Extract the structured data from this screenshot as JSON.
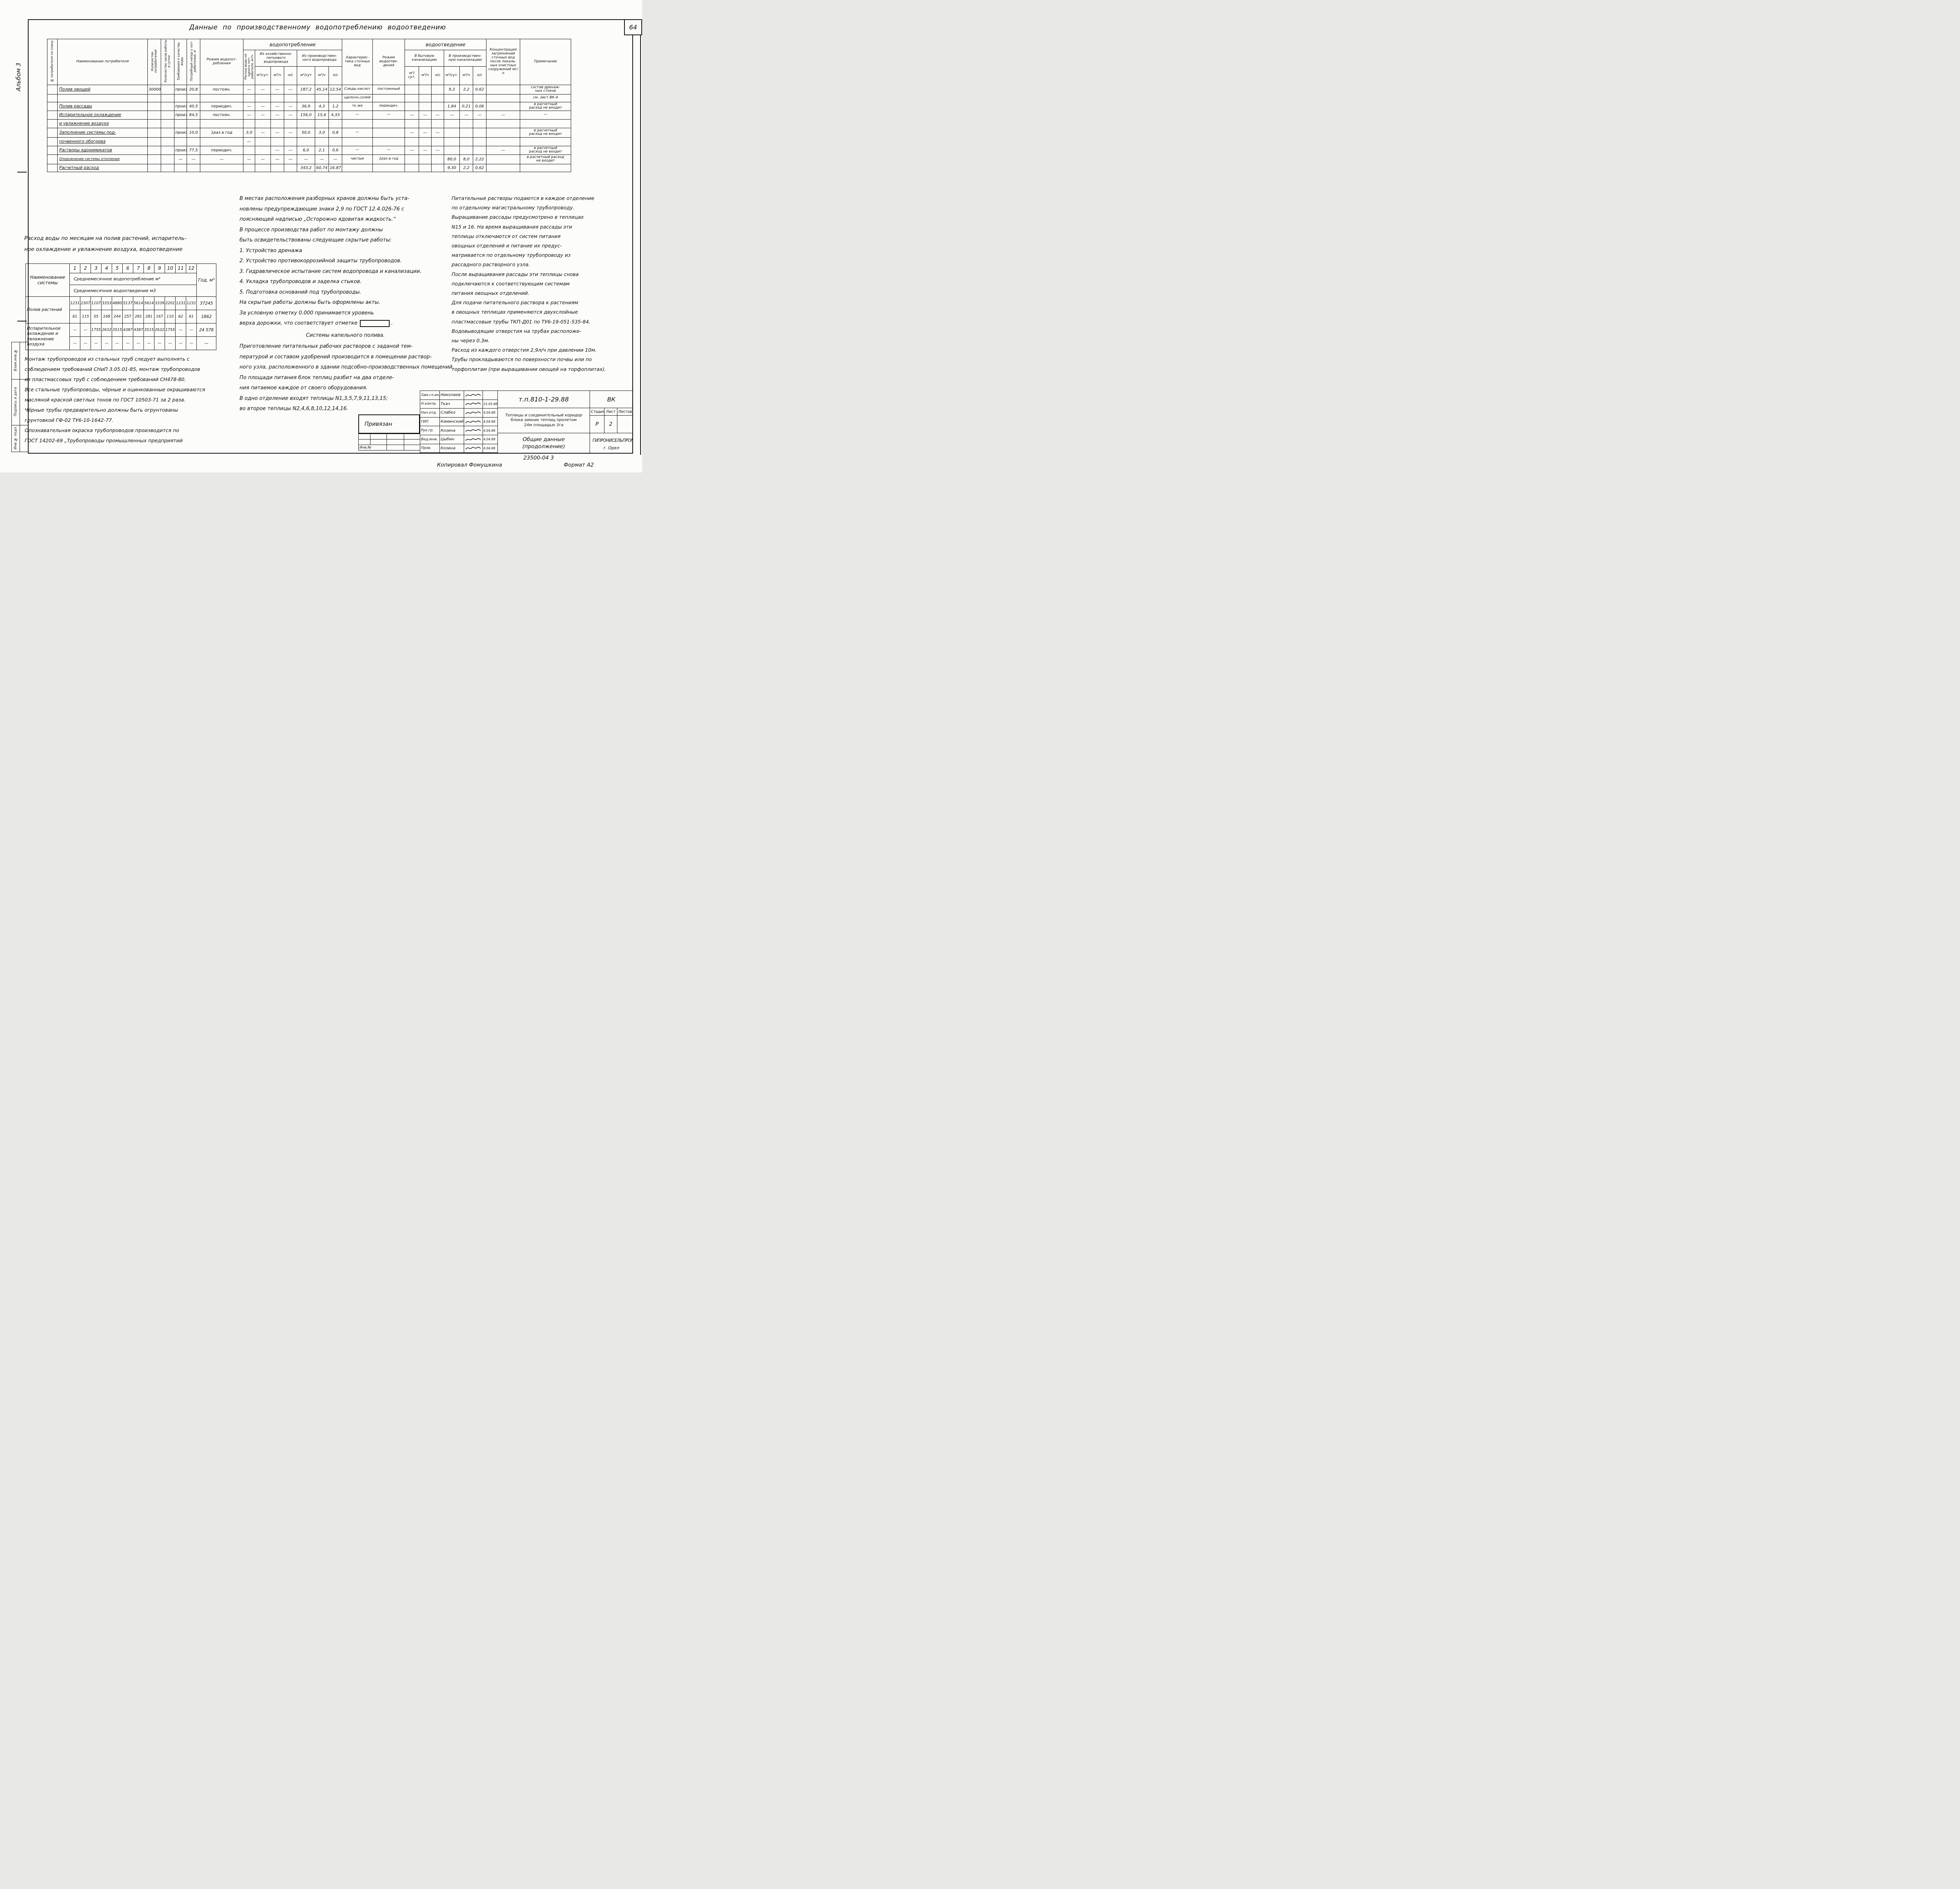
{
  "page": {
    "number": "64",
    "album_label": "Альбом 3",
    "copied": "Копировал Фомушкина",
    "format": "Формат А2"
  },
  "side_labels": [
    "Взам.инв.№",
    "Подпись и дата",
    "Инв.№ подл."
  ],
  "main_table": {
    "title": "Данные по производственному водопотреблению водоотведению",
    "group_consumption": "водопотребление",
    "group_disposal": "водоотведение",
    "headers": {
      "col_no": "№ потребителя по плану",
      "name": "Наименование потребителя",
      "qty": "Количество потребителей",
      "hours": "Количество часов работы в сутки",
      "quality": "Требования к качеству воды",
      "pressure": "Потребный напор у пот-ребителей, м",
      "regime_consumption": "Режим водопот- ребления",
      "per_consumer": "Расход воды на одного пот-ребителя, м³/ч",
      "from_domestic": "Из хозяйственно- питьевого водопровода",
      "from_industrial": "Из производствен- ного водопровода",
      "wastewater_char": "Характерис- тика сточных вод",
      "regime_disposal": "Режим водоотве- дения",
      "to_domestic": "В бытовую канализацию",
      "to_industrial": "В производствен- ную канализацию",
      "concentration": "Концентрация загрязнений сточных вод после локаль- ных очистных сооружений мг/л",
      "note": "Примечание",
      "units": [
        "м³/сут.",
        "м³/ч",
        "л/с",
        "м³/сут",
        "м³/ч",
        "л/с",
        "м³/сут.",
        "м³/ч",
        "л/с",
        "м³/сут.",
        "м³/ч",
        "л/с"
      ]
    },
    "rows": [
      [
        "",
        "Полив овощей",
        "30000",
        "",
        "произв.",
        "20,8",
        "постоян.",
        "—",
        "—",
        "—",
        "—",
        "187,2",
        "45,14",
        "12,54",
        "Следы кислот",
        "постоянный",
        "",
        "",
        "",
        "9,3",
        "2,2",
        "0,62",
        "",
        "состав дренаж-\nных стоков"
      ],
      [
        "",
        "",
        "",
        "",
        "",
        "",
        "",
        "",
        "",
        "",
        "",
        "",
        "",
        "",
        "щелочн.солей",
        "",
        "",
        "",
        "",
        "",
        "",
        "",
        "",
        "см. лист ВК-4"
      ],
      [
        "",
        "Полив рассады",
        "",
        "",
        "произв.",
        "40,5",
        "периодич.",
        "—",
        "—",
        "—",
        "—",
        "36,9",
        "4,3",
        "1,2",
        "то же",
        "периодич.",
        "",
        "",
        "",
        "1,84",
        "0,21",
        "0,06",
        "",
        "в расчетный\nрасход не входит"
      ],
      [
        "",
        "Испарительное охлаждение",
        "",
        "",
        "произв.",
        "84,5",
        "постоян.",
        "—",
        "—",
        "—",
        "—",
        "156,0",
        "15,6",
        "4,33",
        "—",
        "—",
        "—",
        "—",
        "—",
        "—",
        "—",
        "—",
        "—",
        "—"
      ],
      [
        "",
        "и увлажнение воздуха",
        "",
        "",
        "",
        "",
        "",
        "",
        "",
        "",
        "",
        "",
        "",
        "",
        "",
        "",
        "",
        "",
        "",
        "",
        "",
        "",
        "",
        ""
      ],
      [
        "",
        "Заполнение системы под-",
        "",
        "",
        "произв.",
        "10,0",
        "1раз в год",
        "3,0",
        "—",
        "—",
        "—",
        "50,0",
        "3,0",
        "0,8",
        "—",
        "",
        "—",
        "—",
        "—",
        "",
        "",
        "",
        "",
        "в расчетный\nрасход не входит"
      ],
      [
        "",
        "почвенного обогрева",
        "",
        "",
        "",
        "",
        "",
        "—",
        "",
        "",
        "",
        "",
        "",
        "",
        "",
        "",
        "",
        "",
        "",
        "",
        "",
        "",
        "",
        ""
      ],
      [
        "",
        "Растворы ядохимикатов",
        "",
        "",
        "произв.",
        "77,5",
        "периодич.",
        "",
        "",
        "—",
        "—",
        "6,0",
        "2,1",
        "0,6",
        "—",
        "—",
        "—",
        "—",
        "—",
        "",
        "",
        "",
        "—",
        "в расчетный\nрасход не входит"
      ],
      [
        "",
        "Опорожнение системы отопления",
        "",
        "",
        "—",
        "—",
        "—",
        "—",
        "—",
        "—",
        "—",
        "—",
        "—",
        "—",
        "чистые",
        "1раз в год",
        "",
        "",
        "",
        "80,0",
        "8,0",
        "2,22",
        "",
        "в расчетный расход\nне входит"
      ],
      [
        "",
        "Расчетный расход",
        "",
        "",
        "",
        "",
        "",
        "",
        "",
        "",
        "",
        "343,2",
        "60,74",
        "16.87",
        "",
        "",
        "",
        "",
        "",
        "9,30",
        "2,2",
        "0,62",
        "",
        ""
      ]
    ]
  },
  "monthly_table": {
    "title_lines": [
      "Расход воды по месяцам  на полив растений, испаритель-",
      "ное охлаждение и увлажнение воздуха, водоотведение"
    ],
    "name_header": "Наименование системы",
    "months": [
      "1",
      "2",
      "3",
      "4",
      "5",
      "6",
      "7",
      "8",
      "9",
      "10",
      "11",
      "12"
    ],
    "year_header": "Год, м³",
    "sub_consumption": "Среднемесячное водопотребление м³",
    "sub_disposal": "Среднемесячное водоотведение м3",
    "systems": [
      {
        "name": "Полив растений",
        "consumption": [
          "1231",
          "2307",
          "1107",
          "3353",
          "4880",
          "5137",
          "5614",
          "5614",
          "3339",
          "2201",
          "1231",
          "1231"
        ],
        "consumption_year": "37245",
        "disposal": [
          "61",
          "115",
          "55",
          "168",
          "244",
          "257",
          "281",
          "281",
          "167",
          "110",
          "62",
          "61"
        ],
        "disposal_year": "1862"
      },
      {
        "name": "Испарительное охлаждение и увлажнение воздуха",
        "consumption": [
          "—",
          "—",
          "1755",
          "2632",
          "3515",
          "4387",
          "4387",
          "3515",
          "2632",
          "1755",
          "—",
          "—"
        ],
        "consumption_year": "24 578",
        "disposal": [
          "—",
          "—",
          "—",
          "—",
          "—",
          "—",
          "—",
          "—",
          "—",
          "—",
          "—",
          "—"
        ],
        "disposal_year": "—"
      }
    ]
  },
  "notes_left": {
    "lines": [
      "Монтаж трубопроводов из стальных труб следует выполнять с",
      "соблюдением требований СНиП 3.05.01-85, монтаж трубопроводов",
      "из пластмассовых труб с соблюдением требований СН478-80.",
      "Все стальные трубопроводы, чёрные и оцинкованные окрашиваются",
      "масляной краской светлых тонов по ГОСТ 10503-71 за 2 раза.",
      "Чёрные трубы предварительно должны быть огрунтованы",
      "грунтовкой ГФ-02 ТУ6-10-1642-77.",
      "Опознавательная окраска трубопроводов производится по",
      "ГОСТ 14202-69 „Трубопроводы промышленных предприятий"
    ]
  },
  "notes_center": {
    "lines_top": [
      "В местах расположения разборных кранов должны быть уста-",
      "новлены предупреждающие знаки 2,9 по ГОСТ 12.4.026-76 с",
      "поясняющей надписью „Осторожно ядовитая жидкость.“",
      "В процессе производства работ по монтажу должны",
      "быть освидетельствованы следующие скрытые работы:",
      "1. Устройство дренажа",
      "2. Устройство противокоррозийной защиты трубопроводов.",
      "3. Гидравлическое испытание систем водопровода и канализации.",
      "4. Укладка трубопроводов и заделка стыков.",
      "5. Подготовка оснований под трубопроводы.",
      "На скрытые работы должны быть оформлены акты.",
      "За условную отметку 0.000 принимается уровень",
      "верха дорожки, что соответствует отметке"
    ],
    "box_line_index": 12,
    "heading": "Системы капельного полива.",
    "lines_bottom": [
      "Приготовление питательных рабочих растворов с заданой тем-",
      "пературой и составом удобрений производится в помещении раствор-",
      "ного узла, расположенного в здании подсобно-производственных помещений.",
      "По площади питания блок теплиц разбит на два отделе-",
      "ния питаемое каждое от своего оборудования.",
      "В одно отделение входят теплицы N1,3,5,7,9,11,13,15;",
      "во второе теплицы N2,4,6,8,10,12,14,16."
    ]
  },
  "notes_right": {
    "lines": [
      "Питательные растворы подаются в каждое отделение",
      "по отдельному магистральному трубопроводу.",
      "Выращивание рассады предусмотрено в теплицах",
      "N15 и 16.  На время выращивания рассады эти",
      "теплицы отключаются от систем питания",
      "овощных отделений и питание их предус-",
      "матривается по отдельному трубопроводу из",
      "рассадного растворного узла.",
      "После выращивания рассады эти теплицы снова",
      "подключаются к соответствующим системам",
      "питания овощных отделений.",
      "Для подачи питательного раствора к растениям",
      "в овощных теплицах применяются двухслойные",
      "пластмассовые трубы ТКП-Д01 по ТУ6-19-051-535-84.",
      "Водовыводящие отверстия на трубах расположе-",
      "ны через 0.3м.",
      "Расход из каждого отверстия 2,9л/ч при давлении 10м.",
      "Трубы прокладываются по поверхности почвы или по",
      "торфоплитам (при выращивании овощей на торфоплитах)."
    ]
  },
  "stamp": {
    "attached_label": "Привязан",
    "inv_label": "Инв.№",
    "signature_rows": [
      {
        "role": "Зам.гл.инж.",
        "name": "Николаев",
        "signed": true,
        "date": ""
      },
      {
        "role": "Н.контр.",
        "name": "Ткач",
        "signed": true,
        "date": "15.05.88"
      },
      {
        "role": "Нач.отд.",
        "name": "Слабко",
        "signed": true,
        "date": "4.04.88"
      },
      {
        "role": "ГИП",
        "name": "Каминский",
        "signed": true,
        "date": "4.04.88"
      },
      {
        "role": "Рук.гр.",
        "name": "Козина",
        "signed": true,
        "date": "4.04.88"
      },
      {
        "role": "Вед.инж.",
        "name": "Цыбин",
        "signed": true,
        "date": "4.04.88"
      },
      {
        "role": "Пров.",
        "name": "Козина",
        "signed": true,
        "date": "4.04.88"
      }
    ],
    "doc_number": "т.п.810-1-29.88",
    "doc_type": "ВК",
    "project_lines": [
      "Теплицы и соединительный коридор",
      "блока зимних теплиц пролетом",
      "24м площадью 3га"
    ],
    "stage_label": "Стадия",
    "sheet_label": "Лист",
    "sheets_label": "Листов",
    "stage_value": "Р",
    "sheet_value": "2",
    "sheets_value": "",
    "sheet_title_lines": [
      "Общие данные",
      "(продолжение)"
    ],
    "organization": "ГИПРОНИСЕЛЬПРОМ",
    "city": "г. Орел",
    "code_below": "23500-04  3"
  }
}
